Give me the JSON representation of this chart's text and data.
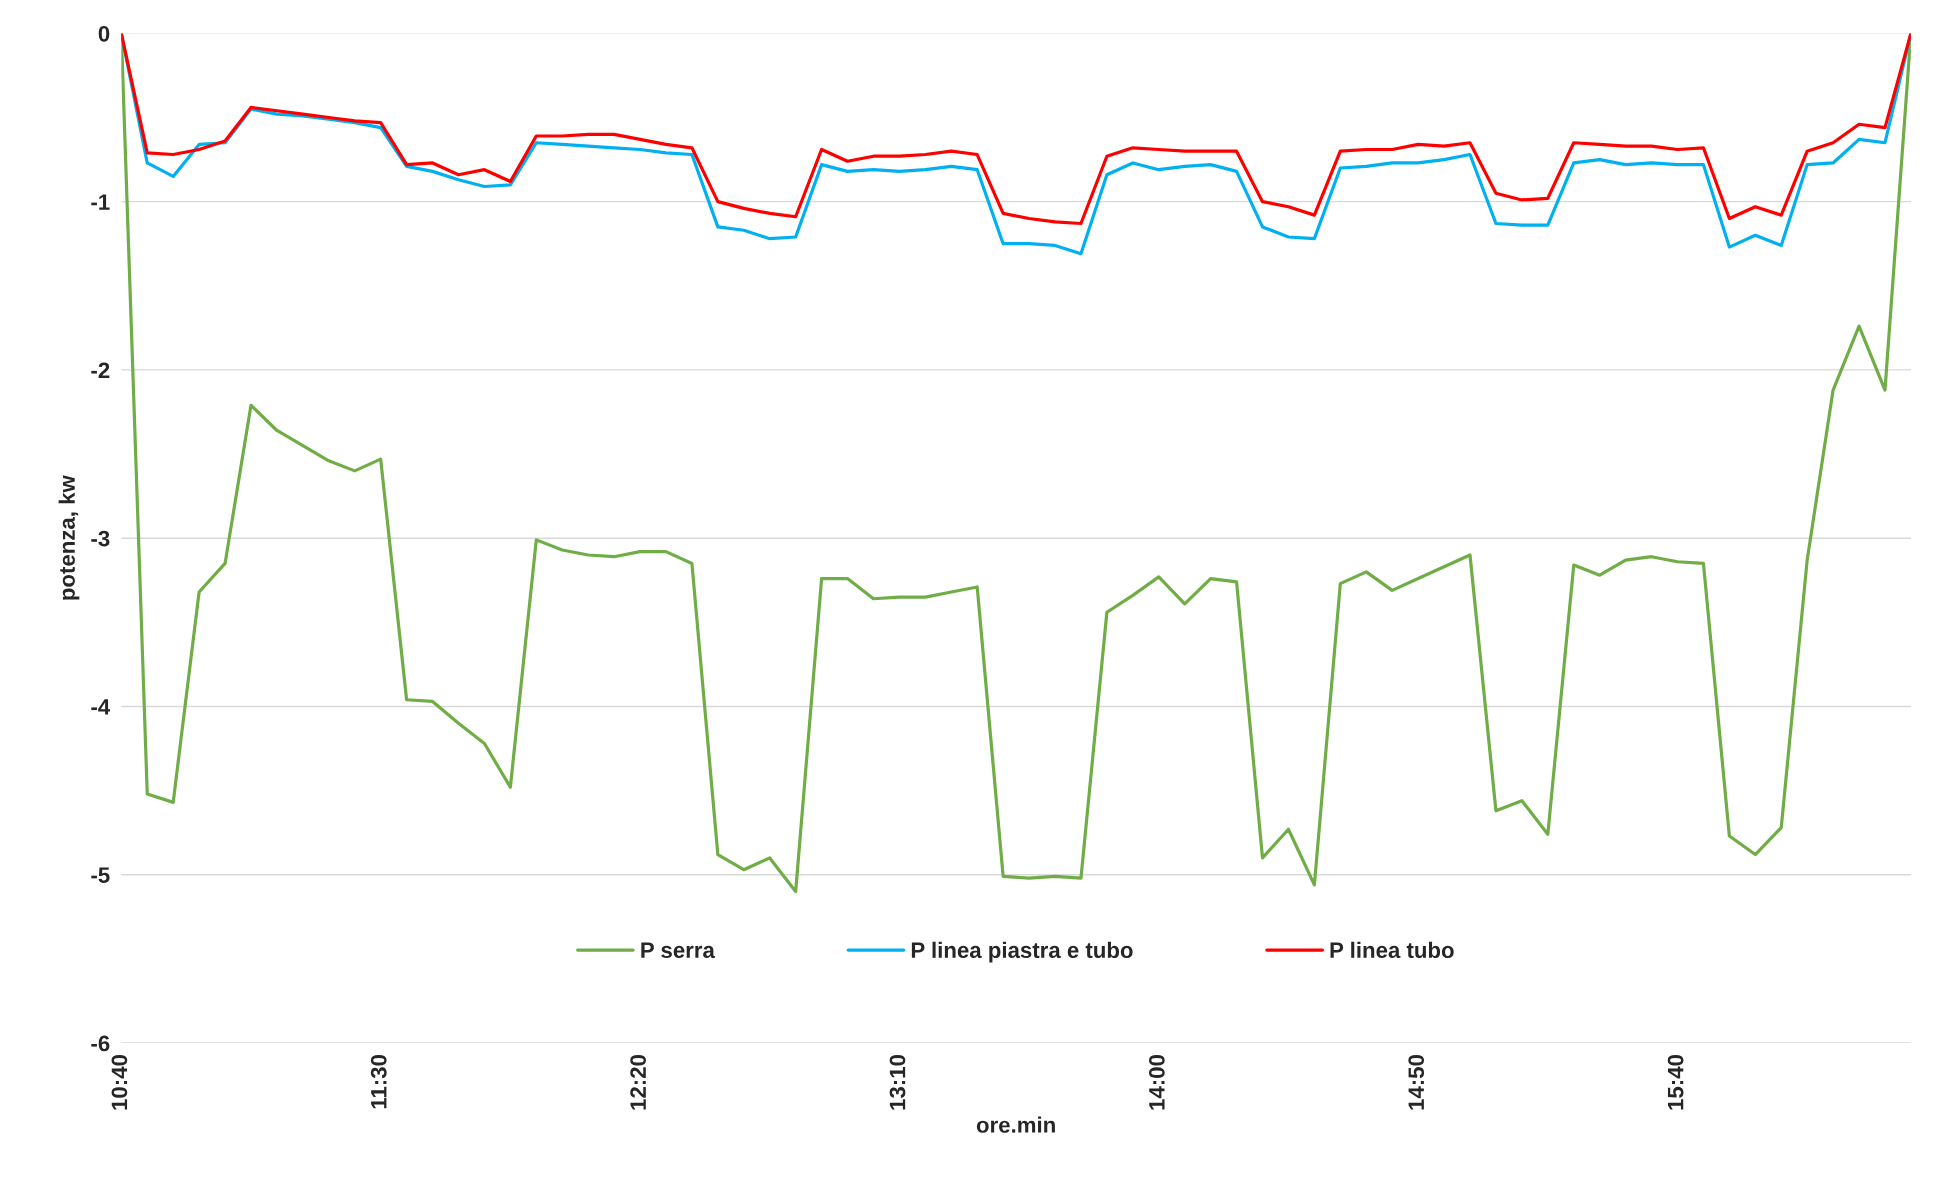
{
  "chart_data": {
    "type": "line",
    "xlabel": "ore.min",
    "ylabel": "potenza, kw",
    "categories": [
      "10:40",
      null,
      null,
      null,
      null,
      null,
      null,
      null,
      null,
      null,
      "11:30",
      null,
      null,
      null,
      null,
      null,
      null,
      null,
      null,
      null,
      "12:20",
      null,
      null,
      null,
      null,
      null,
      null,
      null,
      null,
      null,
      "13:10",
      null,
      null,
      null,
      null,
      null,
      null,
      null,
      null,
      null,
      "14:00",
      null,
      null,
      null,
      null,
      null,
      null,
      null,
      null,
      null,
      "14:50",
      null,
      null,
      null,
      null,
      null,
      null,
      null,
      null,
      null,
      "15:40",
      null,
      null,
      null,
      null,
      null,
      null,
      null,
      null,
      null
    ],
    "ylim": [
      -6,
      0
    ],
    "yticks": [
      -6,
      -5,
      -4,
      -3,
      -2,
      -1,
      0
    ],
    "grid": "y",
    "legend": "bottom",
    "marker": "none",
    "line_style": "solid",
    "series": [
      {
        "name": "P serra",
        "color": "#70ad47",
        "values": [
          0,
          -4.52,
          -4.57,
          -3.32,
          -3.15,
          -2.21,
          -2.36,
          -2.45,
          -2.54,
          -2.6,
          -2.53,
          -3.96,
          -3.97,
          -4.1,
          -4.22,
          -4.48,
          -3.01,
          -3.07,
          -3.1,
          -3.11,
          -3.08,
          -3.08,
          -3.15,
          -4.88,
          -4.97,
          -4.9,
          -5.1,
          -3.24,
          -3.24,
          -3.36,
          -3.35,
          -3.35,
          -3.32,
          -3.29,
          -5.01,
          -5.02,
          -5.01,
          -5.02,
          -3.44,
          -3.34,
          -3.23,
          -3.39,
          -3.24,
          -3.26,
          -4.9,
          -4.73,
          -5.06,
          -3.27,
          -3.2,
          -3.31,
          -3.24,
          -3.17,
          -3.1,
          -4.62,
          -4.56,
          -4.76,
          -3.16,
          -3.22,
          -3.13,
          -3.11,
          -3.14,
          -3.15,
          -4.77,
          -4.88,
          -4.72,
          -3.13,
          -2.12,
          -1.74,
          -2.12,
          0
        ]
      },
      {
        "name": "P linea piastra e tubo",
        "color": "#00b0f0",
        "values": [
          0,
          -0.77,
          -0.85,
          -0.66,
          -0.65,
          -0.45,
          -0.48,
          -0.49,
          -0.51,
          -0.53,
          -0.56,
          -0.79,
          -0.82,
          -0.87,
          -0.91,
          -0.9,
          -0.65,
          -0.66,
          -0.67,
          -0.68,
          -0.69,
          -0.71,
          -0.72,
          -1.15,
          -1.17,
          -1.22,
          -1.21,
          -0.78,
          -0.82,
          -0.81,
          -0.82,
          -0.81,
          -0.79,
          -0.81,
          -1.25,
          -1.25,
          -1.26,
          -1.31,
          -0.84,
          -0.77,
          -0.81,
          -0.79,
          -0.78,
          -0.82,
          -1.15,
          -1.21,
          -1.22,
          -0.8,
          -0.79,
          -0.77,
          -0.77,
          -0.75,
          -0.72,
          -1.13,
          -1.14,
          -1.14,
          -0.77,
          -0.75,
          -0.78,
          -0.77,
          -0.78,
          -0.78,
          -1.27,
          -1.2,
          -1.26,
          -0.78,
          -0.77,
          -0.63,
          -0.65,
          0
        ]
      },
      {
        "name": "P linea tubo",
        "color": "#ff0000",
        "values": [
          0,
          -0.71,
          -0.72,
          -0.69,
          -0.64,
          -0.44,
          -0.46,
          -0.48,
          -0.5,
          -0.52,
          -0.53,
          -0.78,
          -0.77,
          -0.84,
          -0.81,
          -0.88,
          -0.61,
          -0.61,
          -0.6,
          -0.6,
          -0.63,
          -0.66,
          -0.68,
          -1.0,
          -1.04,
          -1.07,
          -1.09,
          -0.69,
          -0.76,
          -0.73,
          -0.73,
          -0.72,
          -0.7,
          -0.72,
          -1.07,
          -1.1,
          -1.12,
          -1.13,
          -0.73,
          -0.68,
          -0.69,
          -0.7,
          -0.7,
          -0.7,
          -1.0,
          -1.03,
          -1.08,
          -0.7,
          -0.69,
          -0.69,
          -0.66,
          -0.67,
          -0.65,
          -0.95,
          -0.99,
          -0.98,
          -0.65,
          -0.66,
          -0.67,
          -0.67,
          -0.69,
          -0.68,
          -1.1,
          -1.03,
          -1.08,
          -0.7,
          -0.65,
          -0.54,
          -0.56,
          0
        ]
      }
    ]
  }
}
